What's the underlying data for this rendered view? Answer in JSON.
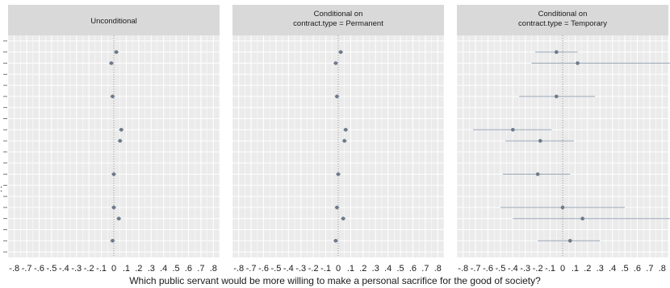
{
  "chart_data": {
    "type": "scatter",
    "subtype": "coefficient-plot-with-intervals",
    "xlabel": "Which public servant would be more willing to make a personal sacrifice for the good of society?",
    "xlim": [
      -0.85,
      0.85
    ],
    "x_ticks": [
      -0.8,
      -0.7,
      -0.6,
      -0.5,
      -0.4,
      -0.3,
      -0.2,
      -0.1,
      0,
      0.1,
      0.2,
      0.3,
      0.4,
      0.5,
      0.6,
      0.7,
      0.8
    ],
    "x_tick_labels": [
      "-.8",
      "-.7",
      "-.6",
      "-.5",
      "-.4",
      "-.3",
      "-.2",
      "-.1",
      "0",
      ".1",
      ".2",
      ".3",
      ".4",
      ".5",
      ".6",
      ".7",
      ".8"
    ],
    "y_label_visible": ":",
    "reference_line_x": 0,
    "grid": true,
    "colors": {
      "panel_background": "#ebebeb",
      "strip_background": "#d9d9d9",
      "grid_line": "#ffffff",
      "point": "#6e7a8a",
      "interval": "#9aa7b7",
      "reference_line": "#8a8a8a"
    },
    "panels": [
      {
        "title": "Unconditional",
        "points": [
          {
            "row": 1,
            "x": 0.02,
            "lo": 0.0,
            "hi": 0.04
          },
          {
            "row": 2,
            "x": -0.02,
            "lo": -0.04,
            "hi": 0.0
          },
          {
            "row": 5,
            "x": -0.01,
            "lo": -0.03,
            "hi": 0.01
          },
          {
            "row": 8,
            "x": 0.06,
            "lo": 0.04,
            "hi": 0.08
          },
          {
            "row": 9,
            "x": 0.05,
            "lo": 0.03,
            "hi": 0.07
          },
          {
            "row": 12,
            "x": 0.0,
            "lo": -0.02,
            "hi": 0.02
          },
          {
            "row": 15,
            "x": 0.0,
            "lo": -0.02,
            "hi": 0.02
          },
          {
            "row": 16,
            "x": 0.04,
            "lo": 0.02,
            "hi": 0.06
          },
          {
            "row": 18,
            "x": -0.01,
            "lo": -0.03,
            "hi": 0.01
          }
        ]
      },
      {
        "title": "Conditional on\ncontract.type = Permanent",
        "points": [
          {
            "row": 1,
            "x": 0.02,
            "lo": 0.0,
            "hi": 0.04
          },
          {
            "row": 2,
            "x": -0.02,
            "lo": -0.04,
            "hi": 0.0
          },
          {
            "row": 5,
            "x": -0.01,
            "lo": -0.03,
            "hi": 0.01
          },
          {
            "row": 8,
            "x": 0.06,
            "lo": 0.04,
            "hi": 0.08
          },
          {
            "row": 9,
            "x": 0.05,
            "lo": 0.03,
            "hi": 0.07
          },
          {
            "row": 12,
            "x": 0.0,
            "lo": -0.02,
            "hi": 0.02
          },
          {
            "row": 15,
            "x": -0.01,
            "lo": -0.03,
            "hi": 0.01
          },
          {
            "row": 16,
            "x": 0.04,
            "lo": 0.02,
            "hi": 0.06
          },
          {
            "row": 18,
            "x": -0.02,
            "lo": -0.04,
            "hi": 0.0
          }
        ]
      },
      {
        "title": "Conditional on\ncontract.type = Temporary",
        "points": [
          {
            "row": 1,
            "x": -0.05,
            "lo": -0.22,
            "hi": 0.12
          },
          {
            "row": 2,
            "x": 0.12,
            "lo": -0.25,
            "hi": 0.87
          },
          {
            "row": 5,
            "x": -0.05,
            "lo": -0.35,
            "hi": 0.26
          },
          {
            "row": 8,
            "x": -0.4,
            "lo": -0.72,
            "hi": -0.09
          },
          {
            "row": 9,
            "x": -0.18,
            "lo": -0.46,
            "hi": 0.09
          },
          {
            "row": 12,
            "x": -0.2,
            "lo": -0.48,
            "hi": 0.06
          },
          {
            "row": 15,
            "x": 0.0,
            "lo": -0.5,
            "hi": 0.5
          },
          {
            "row": 16,
            "x": 0.16,
            "lo": -0.4,
            "hi": 0.92
          },
          {
            "row": 18,
            "x": 0.06,
            "lo": -0.2,
            "hi": 0.3
          }
        ]
      }
    ]
  }
}
